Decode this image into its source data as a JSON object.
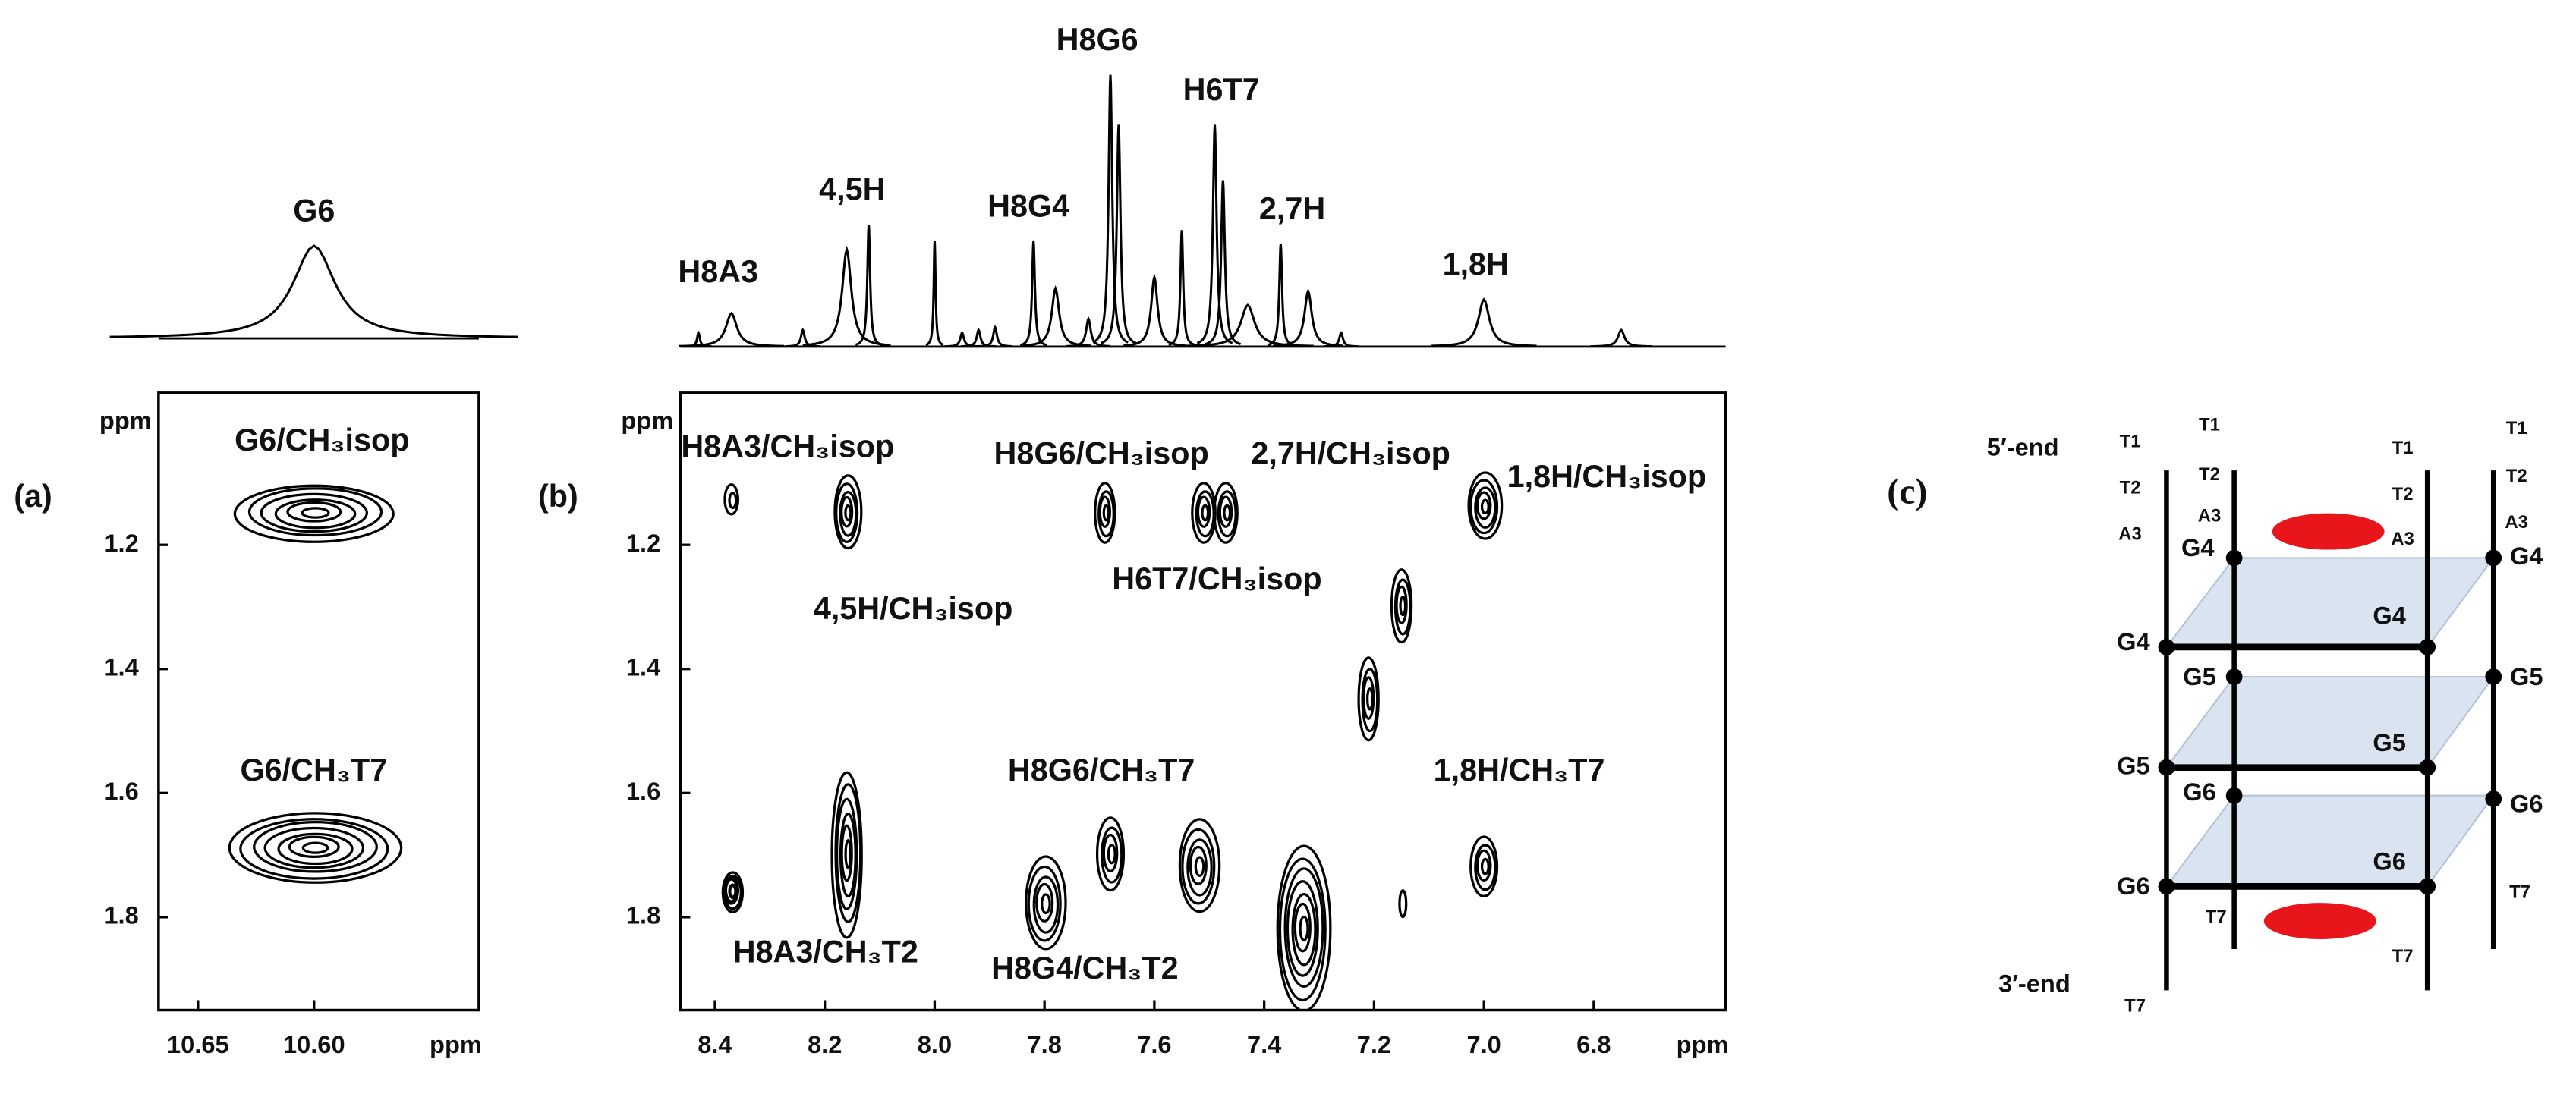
{
  "chart_data": [
    {
      "type": "nmr-2d",
      "panel_label": "(a)",
      "x_label": "ppm",
      "y_label": "ppm",
      "xlim": [
        10.667,
        10.529
      ],
      "ylim": [
        0.955,
        1.95
      ],
      "xticks": [
        10.65,
        {
          "value": 10.6,
          "label": "10.60"
        }
      ],
      "yticks": [
        1.2,
        1.4,
        1.6,
        1.8
      ],
      "spectrum": [
        {
          "label": "G6",
          "x": 10.6,
          "height": 0.33,
          "width": 0.011
        }
      ],
      "peaks": [
        {
          "label": "G6/CH₃isop",
          "x": 10.6,
          "y": 1.15
        },
        {
          "label": "G6/CH₃T7",
          "x": 10.6,
          "y": 1.69
        }
      ]
    },
    {
      "type": "nmr-2d",
      "panel_label": "(b)",
      "x_label": "ppm",
      "y_label": "ppm",
      "xlim": [
        8.463,
        6.56
      ],
      "ylim": [
        0.955,
        1.95
      ],
      "xticks": [
        8.4,
        8.2,
        {
          "value": 8,
          "label": "8.0"
        },
        7.8,
        7.6,
        7.4,
        7.2,
        {
          "value": 7,
          "label": "7.0"
        },
        6.8
      ],
      "yticks": [
        1.2,
        1.4,
        1.6,
        1.8
      ],
      "spectrum": [
        {
          "x": 8.43,
          "height": 0.05,
          "width": 0.003
        },
        {
          "label": "H8A3",
          "x": 8.37,
          "height": 0.12,
          "width": 0.012
        },
        {
          "x": 8.24,
          "height": 0.06,
          "width": 0.004
        },
        {
          "x": 8.16,
          "height": 0.35,
          "width": 0.01
        },
        {
          "label": "4,5H",
          "x": 8.12,
          "height": 0.44,
          "width": 0.003
        },
        {
          "x": 8.0,
          "height": 0.38,
          "width": 0.002
        },
        {
          "x": 7.95,
          "height": 0.05,
          "width": 0.004
        },
        {
          "x": 7.92,
          "height": 0.06,
          "width": 0.004
        },
        {
          "x": 7.89,
          "height": 0.07,
          "width": 0.004
        },
        {
          "label": "H8G4",
          "x": 7.82,
          "height": 0.38,
          "width": 0.003
        },
        {
          "x": 7.78,
          "height": 0.21,
          "width": 0.008
        },
        {
          "x": 7.72,
          "height": 0.1,
          "width": 0.005
        },
        {
          "label": "H8G6",
          "x": 7.68,
          "height": 0.98,
          "width": 0.004
        },
        {
          "x": 7.665,
          "height": 0.8,
          "width": 0.004
        },
        {
          "x": 7.6,
          "height": 0.25,
          "width": 0.007
        },
        {
          "x": 7.55,
          "height": 0.42,
          "width": 0.003
        },
        {
          "label": "H6T7",
          "x": 7.49,
          "height": 0.8,
          "width": 0.004
        },
        {
          "x": 7.475,
          "height": 0.6,
          "width": 0.004
        },
        {
          "x": 7.43,
          "height": 0.15,
          "width": 0.015
        },
        {
          "label": "2,7H",
          "x": 7.37,
          "height": 0.37,
          "width": 0.003
        },
        {
          "x": 7.32,
          "height": 0.2,
          "width": 0.008
        },
        {
          "x": 7.26,
          "height": 0.05,
          "width": 0.004
        },
        {
          "label": "1,8H",
          "x": 7.0,
          "height": 0.17,
          "width": 0.012
        },
        {
          "x": 6.75,
          "height": 0.06,
          "width": 0.007
        }
      ],
      "peaks": [
        {
          "label": "H8A3/CH₃isop",
          "x": 8.37,
          "y": 1.13
        },
        {
          "label": "4,5H/CH₃isop",
          "x": 8.16,
          "y": 1.15
        },
        {
          "label": "H8G6/CH₃isop",
          "x": 7.69,
          "y": 1.15
        },
        {
          "label": "2,7H/CH₃isop",
          "x": 7.51,
          "y": 1.15
        },
        {
          "label": "H6T7/CH₃isop",
          "x": 7.47,
          "y": 1.15
        },
        {
          "label": "1,8H/CH₃isop",
          "x": 7.0,
          "y": 1.14
        },
        {
          "x": 7.15,
          "y": 1.3
        },
        {
          "x": 7.21,
          "y": 1.45
        },
        {
          "x": 8.37,
          "y": 1.76
        },
        {
          "label": "H8A3/CH₃T2",
          "x": 8.37,
          "y": 1.76
        },
        {
          "x": 8.16,
          "y": 1.7
        },
        {
          "label": "H8G4/CH₃T2",
          "x": 7.8,
          "y": 1.78
        },
        {
          "label": "H8G6/CH₃T7",
          "x": 7.68,
          "y": 1.7
        },
        {
          "x": 7.52,
          "y": 1.72
        },
        {
          "x": 7.33,
          "y": 1.82
        },
        {
          "label": "1,8H/CH₃T7",
          "x": 7.0,
          "y": 1.72
        },
        {
          "x": 7.15,
          "y": 1.78
        }
      ]
    }
  ],
  "diagram": {
    "panel_label": "(c)",
    "five_end": "5′-end",
    "three_end": "3′-end",
    "labels": [
      "T1",
      "T2",
      "A3",
      "T1",
      "T2",
      "A3",
      "T1",
      "T2",
      "A3",
      "T1",
      "T2",
      "A3",
      "T7",
      "T7",
      "T7",
      "T7",
      "G4",
      "G4",
      "G4",
      "G4",
      "G5",
      "G5",
      "G5",
      "G5",
      "G6",
      "G6",
      "G6",
      "G6"
    ]
  }
}
